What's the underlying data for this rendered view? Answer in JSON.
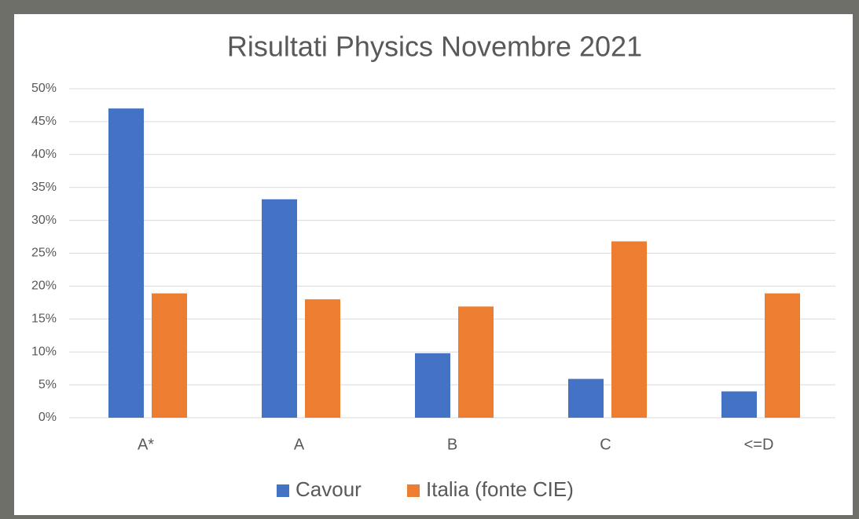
{
  "chart_data": {
    "type": "bar",
    "title": "Risultati Physics Novembre 2021",
    "categories": [
      "A*",
      "A",
      "B",
      "C",
      "<=D"
    ],
    "series": [
      {
        "name": "Cavour",
        "color": "#4472c4",
        "values": [
          47,
          33.2,
          9.8,
          5.9,
          4
        ]
      },
      {
        "name": "Italia (fonte CIE)",
        "color": "#ed7d31",
        "values": [
          18.9,
          18,
          16.9,
          26.8,
          18.9
        ]
      }
    ],
    "ylim": [
      0,
      50
    ],
    "yticks": [
      {
        "value": 0,
        "label": "0%"
      },
      {
        "value": 5,
        "label": "5%"
      },
      {
        "value": 10,
        "label": "10%"
      },
      {
        "value": 15,
        "label": "15%"
      },
      {
        "value": 20,
        "label": "20%"
      },
      {
        "value": 25,
        "label": "25%"
      },
      {
        "value": 30,
        "label": "30%"
      },
      {
        "value": 35,
        "label": "35%"
      },
      {
        "value": 40,
        "label": "40%"
      },
      {
        "value": 45,
        "label": "45%"
      },
      {
        "value": 50,
        "label": "50%"
      }
    ],
    "grid": true
  }
}
